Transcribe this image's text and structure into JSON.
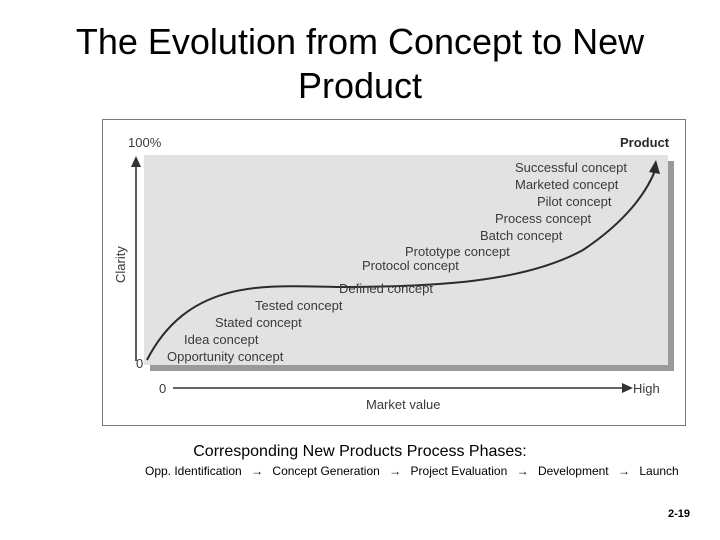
{
  "slide": {
    "title_line1": "The Evolution from Concept to New",
    "title_line2": "Product",
    "slide_number": "2-19"
  },
  "figure": {
    "y_top_label": "100%",
    "y_bottom_label": "0",
    "y_axis_label": "Clarity",
    "x_start_label": "0",
    "x_end_label": "High",
    "x_axis_label": "Market value",
    "curve_end_label": "Product",
    "concepts": [
      "Opportunity concept",
      "Idea concept",
      "Stated concept",
      "Tested concept",
      "Defined concept",
      "Protocol concept",
      "Prototype concept",
      "Batch concept",
      "Process concept",
      "Pilot concept",
      "Marketed concept",
      "Successful concept"
    ]
  },
  "phases": {
    "heading": "Corresponding New Products Process Phases:",
    "arrow_glyph": "→",
    "items": [
      "Opp. Identification",
      "Concept Generation",
      "Project Evaluation",
      "Development",
      "Launch"
    ]
  }
}
